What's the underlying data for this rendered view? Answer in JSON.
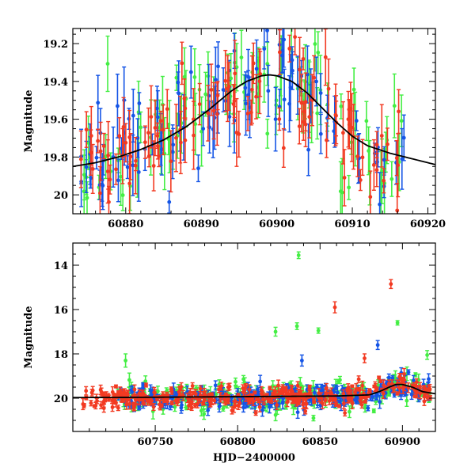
{
  "colors": {
    "green": "#44ee44",
    "blue": "#1555e6",
    "red": "#f23a22",
    "model": "#000000"
  },
  "chart_data": [
    {
      "type": "scatter",
      "xlabel": "",
      "ylabel": "Magnitude",
      "xlim": [
        60873,
        60921
      ],
      "ylim": [
        20.1,
        19.12
      ],
      "y_inverted": true,
      "xticks_major": [
        60880,
        60890,
        60900,
        60910,
        60920
      ],
      "yticks_major": [
        19.2,
        19.4,
        19.6,
        19.8,
        20
      ],
      "ytick_labels": [
        "19.2",
        "19.4",
        "19.6",
        "19.8",
        "20"
      ],
      "model_curve": {
        "color": "model",
        "x": [
          60873,
          60876,
          60879,
          60882,
          60885,
          60888,
          60891,
          60894,
          60896,
          60898,
          60899,
          60900,
          60902,
          60904,
          60906,
          60908,
          60910,
          60912,
          60915,
          60918,
          60921
        ],
        "y": [
          19.85,
          19.83,
          19.8,
          19.76,
          19.71,
          19.64,
          19.55,
          19.45,
          19.4,
          19.37,
          19.365,
          19.37,
          19.4,
          19.46,
          19.54,
          19.62,
          19.69,
          19.74,
          19.78,
          19.81,
          19.84
        ]
      },
      "series": [
        {
          "color": "green",
          "seed": 11,
          "count": 95,
          "x_range": [
            60873.5,
            60917
          ],
          "scatter": 0.16,
          "err": [
            0.06,
            0.2
          ],
          "min_mag": 19.1
        },
        {
          "color": "blue",
          "seed": 23,
          "count": 100,
          "x_range": [
            60873.5,
            60917
          ],
          "scatter": 0.14,
          "err": [
            0.05,
            0.18
          ],
          "min_mag": 19.1
        },
        {
          "color": "red",
          "seed": 37,
          "count": 110,
          "x_range": [
            60873.5,
            60917
          ],
          "scatter": 0.14,
          "err": [
            0.05,
            0.18
          ],
          "min_mag": 19.1
        }
      ]
    },
    {
      "type": "scatter",
      "xlabel": "HJD−2400000",
      "ylabel": "Magnitude",
      "xlim": [
        60700,
        60920
      ],
      "ylim": [
        21.5,
        13.0
      ],
      "y_inverted": true,
      "xticks_major": [
        60750,
        60800,
        60850,
        60900
      ],
      "yticks_major": [
        14,
        16,
        18,
        20
      ],
      "ytick_labels": [
        "14",
        "16",
        "18",
        "20"
      ],
      "model_curve": {
        "color": "model",
        "x": [
          60700,
          60740,
          60780,
          60820,
          60860,
          60880,
          60886,
          60892,
          60896,
          60900,
          60906,
          60912,
          60920
        ],
        "y": [
          19.97,
          19.96,
          19.94,
          19.92,
          19.9,
          19.85,
          19.7,
          19.5,
          19.38,
          19.38,
          19.5,
          19.7,
          19.8
        ]
      },
      "series": [
        {
          "color": "green",
          "seed": 101,
          "count": 230,
          "x_range": [
            60727,
            60917
          ],
          "scatter": 0.3,
          "err": [
            0.08,
            0.35
          ]
        },
        {
          "color": "blue",
          "seed": 202,
          "count": 260,
          "x_range": [
            60727,
            60917
          ],
          "scatter": 0.25,
          "err": [
            0.07,
            0.3
          ]
        },
        {
          "color": "red",
          "seed": 303,
          "count": 330,
          "x_range": [
            60706,
            60917
          ],
          "scatter": 0.22,
          "err": [
            0.05,
            0.25
          ]
        }
      ],
      "outliers": [
        {
          "series": "green",
          "x": 60837,
          "y": 13.55,
          "err": 0.15
        },
        {
          "series": "green",
          "x": 60836,
          "y": 16.75,
          "err": 0.15
        },
        {
          "series": "green",
          "x": 60823,
          "y": 17.0,
          "err": 0.2
        },
        {
          "series": "green",
          "x": 60849,
          "y": 16.95,
          "err": 0.12
        },
        {
          "series": "green",
          "x": 60897,
          "y": 16.6,
          "err": 0.1
        },
        {
          "series": "green",
          "x": 60732,
          "y": 18.3,
          "err": 0.3
        },
        {
          "series": "green",
          "x": 60915,
          "y": 18.05,
          "err": 0.2
        },
        {
          "series": "red",
          "x": 60893,
          "y": 14.85,
          "err": 0.2
        },
        {
          "series": "red",
          "x": 60859,
          "y": 15.9,
          "err": 0.25
        },
        {
          "series": "red",
          "x": 60877,
          "y": 18.2,
          "err": 0.2
        },
        {
          "series": "blue",
          "x": 60839,
          "y": 18.3,
          "err": 0.25
        },
        {
          "series": "blue",
          "x": 60885,
          "y": 17.6,
          "err": 0.2
        }
      ]
    }
  ]
}
